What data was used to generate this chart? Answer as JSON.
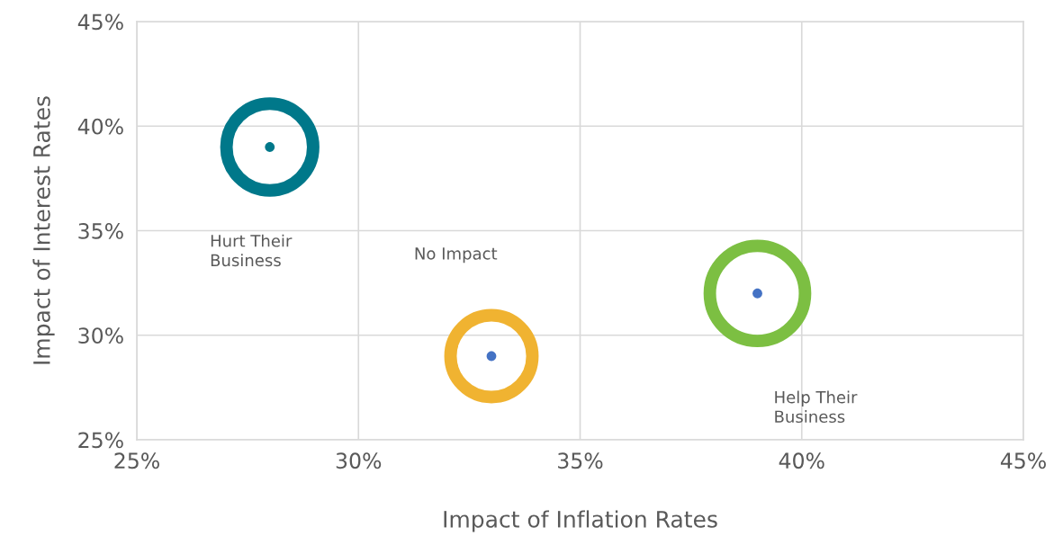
{
  "chart_data": {
    "type": "bubble",
    "xlabel": "Impact of Inflation Rates",
    "ylabel": "Impact of Interest Rates",
    "x": [
      28,
      33,
      39
    ],
    "series": [
      {
        "type": "bubble",
        "values": [
          39,
          29,
          32
        ],
        "sizes": [
          0.83,
          0.74,
          1
        ],
        "colors": [
          "#00788a",
          "#f0b331",
          "#7cbf42"
        ]
      },
      {
        "type": "scatter",
        "values": [
          39,
          29,
          32
        ],
        "colors": [
          "#00788a",
          "#4472c4",
          "#4472c4"
        ]
      }
    ],
    "annotations": [
      "Hurt Their\nBusiness",
      "No Impact",
      "Help Their\nBusiness"
    ],
    "xlim": [
      25,
      45
    ],
    "ylim": [
      25,
      45
    ],
    "xticks": [
      {
        "value": 25,
        "label": "25%"
      },
      {
        "value": 30,
        "label": "30%"
      },
      {
        "value": 35,
        "label": "35%"
      },
      {
        "value": 40,
        "label": "40%"
      },
      {
        "value": 45,
        "label": "45%"
      }
    ],
    "yticks": [
      {
        "value": 25,
        "label": "25%"
      },
      {
        "value": 30,
        "label": "30%"
      },
      {
        "value": 35,
        "label": "35%"
      },
      {
        "value": 40,
        "label": "40%"
      },
      {
        "value": 45,
        "label": "45%"
      }
    ],
    "grid": true,
    "marker": "circle"
  }
}
